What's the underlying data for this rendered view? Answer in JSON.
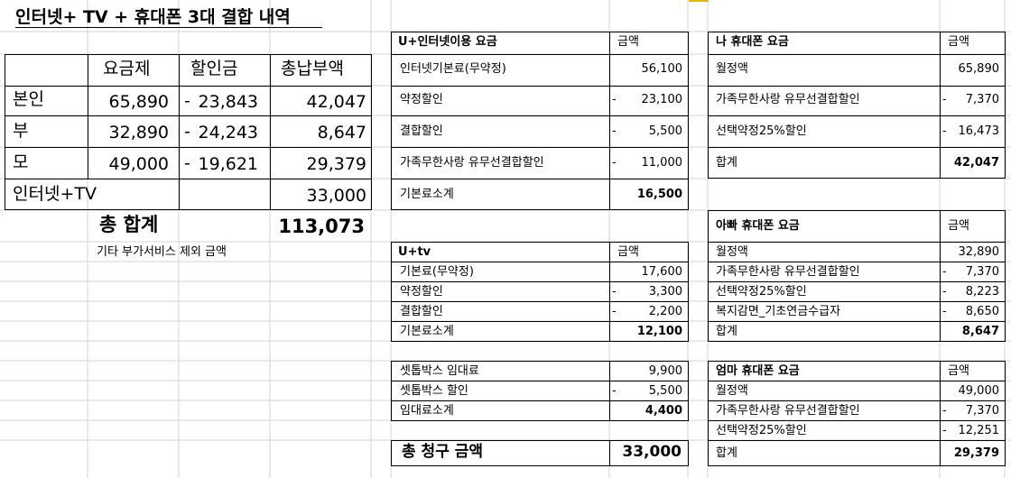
{
  "title": "인터넷+ TV + 휴대폰 3대 결합 내역",
  "summary": {
    "headers": [
      "요금제",
      "할인금",
      "총납부액"
    ],
    "rows": [
      {
        "name": "본인",
        "plan": "65,890",
        "discount_sign": "-",
        "discount": "23,843",
        "total": "42,047"
      },
      {
        "name": "부",
        "plan": "32,890",
        "discount_sign": "-",
        "discount": "24,243",
        "total": "8,647"
      },
      {
        "name": "모",
        "plan": "49,000",
        "discount_sign": "-",
        "discount": "19,621",
        "total": "29,379"
      },
      {
        "name": "인터넷+TV",
        "plan": "",
        "discount_sign": "",
        "discount": "",
        "total": "33,000"
      }
    ],
    "grand_total_label": "총 합계",
    "grand_total": "113,073",
    "note": "기타 부가서비스 제외 금액"
  },
  "internet": {
    "header": "U+인터넷이용 요금",
    "amount_header": "금액",
    "rows": [
      {
        "label": "인터넷기본료(무약정)",
        "sign": "",
        "amount": "56,100"
      },
      {
        "label": "약정할인",
        "sign": "-",
        "amount": "23,100"
      },
      {
        "label": "결합할인",
        "sign": "-",
        "amount": "5,500"
      },
      {
        "label": "가족무한사랑 유무선결합할인",
        "sign": "-",
        "amount": "11,000"
      }
    ],
    "subtotal_label": "기본료소계",
    "subtotal": "16,500"
  },
  "tv": {
    "header": "U+tv",
    "amount_header": "금액",
    "rows": [
      {
        "label": "기본료(무약정)",
        "sign": "",
        "amount": "17,600"
      },
      {
        "label": "약정할인",
        "sign": "-",
        "amount": "3,300"
      },
      {
        "label": "결합할인",
        "sign": "-",
        "amount": "2,200"
      }
    ],
    "subtotal_label": "기본료소계",
    "subtotal": "12,100"
  },
  "settop": {
    "rows": [
      {
        "label": "셋톱박스 임대료",
        "sign": "",
        "amount": "9,900"
      },
      {
        "label": "셋톱박스 할인",
        "sign": "-",
        "amount": "5,500"
      }
    ],
    "subtotal_label": "임대료소계",
    "subtotal": "4,400"
  },
  "billing_total": {
    "label": "총 청구 금액",
    "amount": "33,000"
  },
  "my_phone": {
    "header": "나 휴대폰 요금",
    "amount_header": "금액",
    "rows": [
      {
        "label": "월정액",
        "sign": "",
        "amount": "65,890"
      },
      {
        "label": "가족무한사랑 유무선결합할인",
        "sign": "-",
        "amount": "7,370"
      },
      {
        "label": "선택약정25%할인",
        "sign": "-",
        "amount": "16,473"
      }
    ],
    "total_label": "합계",
    "total": "42,047"
  },
  "dad_phone": {
    "header": "아빠 휴대폰 요금",
    "amount_header": "금액",
    "rows": [
      {
        "label": "월정액",
        "sign": "",
        "amount": "32,890"
      },
      {
        "label": "가족무한사랑 유무선결합할인",
        "sign": "-",
        "amount": "7,370"
      },
      {
        "label": "선택약정25%할인",
        "sign": "-",
        "amount": "8,223"
      },
      {
        "label": "복지감면_기초연금수급자",
        "sign": "-",
        "amount": "8,650"
      }
    ],
    "total_label": "합계",
    "total": "8,647"
  },
  "mom_phone": {
    "header": "엄마 휴대폰 요금",
    "amount_header": "금액",
    "rows": [
      {
        "label": "월정액",
        "sign": "",
        "amount": "49,000"
      },
      {
        "label": "가족무한사랑 유무선결합할인",
        "sign": "-",
        "amount": "7,370"
      },
      {
        "label": "선택약정25%할인",
        "sign": "-",
        "amount": "12,251"
      }
    ],
    "total_label": "합계",
    "total": "29,379"
  }
}
